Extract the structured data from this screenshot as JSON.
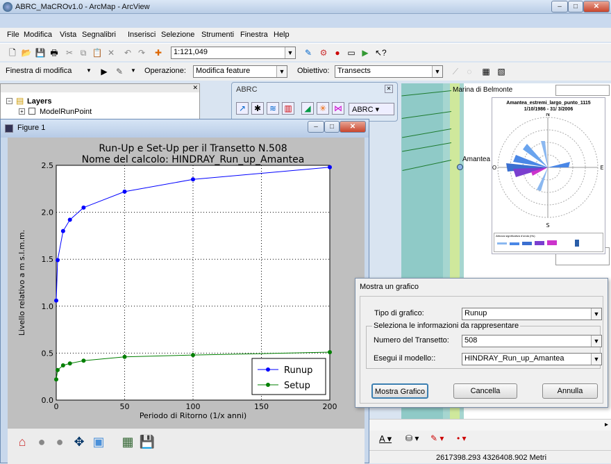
{
  "window": {
    "title": "ABRC_MaCROv1.0 - ArcMap - ArcView"
  },
  "menu": [
    "File",
    "Modifica",
    "Vista",
    "Segnalibri",
    "Inserisci",
    "Selezione",
    "Strumenti",
    "Finestra",
    "Help"
  ],
  "toolbar": {
    "scale_value": "1:121,049",
    "edit_menu_label": "Finestra di modifica",
    "operation_label": "Operazione:",
    "operation_value": "Modifica feature",
    "target_label": "Obiettivo:",
    "target_value": "Transects"
  },
  "toc": {
    "layers_label": "Layers",
    "item1": "ModelRunPoint"
  },
  "abrc_toolbar": {
    "title": "ABRC",
    "menu_label": "ABRC"
  },
  "map": {
    "place1": "Marina di Belmonte",
    "place2": "Amantea",
    "windrose_title": "Amantea_estremi_largo_punto_1115",
    "windrose_subtitle": "1/10/1986 - 31/ 3/2006",
    "windrose_north": "N",
    "windrose_south": "S",
    "windrose_east": "E",
    "windrose_west": "O",
    "windrose_legend": "Altezza significativa d'onda (Hs)"
  },
  "figure": {
    "window_title": "Figure 1"
  },
  "chart_data": {
    "type": "line",
    "title": "Run-Up e Set-Up per il Transetto N.508",
    "subtitle": "Nome del calcolo: HINDRAY_Run_up_Amantea",
    "xlabel": "Periodo di Ritorno (1/x anni)",
    "ylabel": "Livello relativo a m s.l.m.m.",
    "xlim": [
      0,
      200
    ],
    "ylim": [
      0,
      2.5
    ],
    "xticks": [
      "0",
      "50",
      "100",
      "150",
      "200"
    ],
    "yticks": [
      "0.0",
      "0.5",
      "1.0",
      "1.5",
      "2.0",
      "2.5"
    ],
    "grid": true,
    "legend_position": "lower-right",
    "series": [
      {
        "name": "Runup",
        "color": "#0000ff",
        "x": [
          0,
          1,
          5,
          10,
          20,
          50,
          100,
          200
        ],
        "y": [
          1.06,
          1.49,
          1.8,
          1.92,
          2.05,
          2.22,
          2.35,
          2.48
        ]
      },
      {
        "name": "Setup",
        "color": "#007f00",
        "x": [
          0,
          1,
          5,
          10,
          20,
          50,
          100,
          200
        ],
        "y": [
          0.22,
          0.32,
          0.37,
          0.39,
          0.42,
          0.46,
          0.48,
          0.51
        ]
      }
    ]
  },
  "dialog": {
    "title": "Mostra un grafico",
    "chart_type_label": "Tipo di grafico:",
    "chart_type_value": "Runup",
    "group_label": "Seleziona le informazioni da rappresentare",
    "transect_label": "Numero del Transetto:",
    "transect_value": "508",
    "model_label": "Esegui il modello::",
    "model_value": "HINDRAY_Run_up_Amantea",
    "show_button": "Mostra Grafico",
    "clear_button": "Cancella",
    "cancel_button": "Annulla"
  },
  "status": {
    "coordinates": "2617398.293  4326408.902 Metri"
  }
}
